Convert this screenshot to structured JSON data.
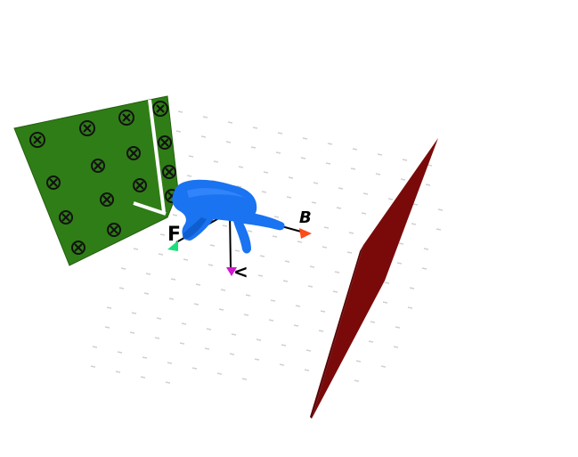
{
  "scene": {
    "background": "#ffffff",
    "colors": {
      "green_panel": "#2f7d16",
      "green_panel_edge": "#245f10",
      "marker_ring": "#111111",
      "red_panel": "#7a0a0a",
      "red_panel_dark": "#5c0606",
      "hand": "#1a73f0",
      "hand_shadow": "#0f5ed0",
      "axis_line": "#000000",
      "arrow_green": "#19e07a",
      "arrow_orange": "#ff4a1a",
      "arrow_magenta": "#d01ad0",
      "white_lines": "#ffffff",
      "dots": "#d0d0d0"
    },
    "objects": {
      "green_panel": "fiducial-marker-board",
      "red_panel": "thin-red-plane",
      "hand": "blue-hand-model",
      "axes": "coordinate-axes-triad"
    },
    "marker_count": 15,
    "axis_labels": {
      "left": "F",
      "right": "B",
      "down": "<"
    }
  }
}
